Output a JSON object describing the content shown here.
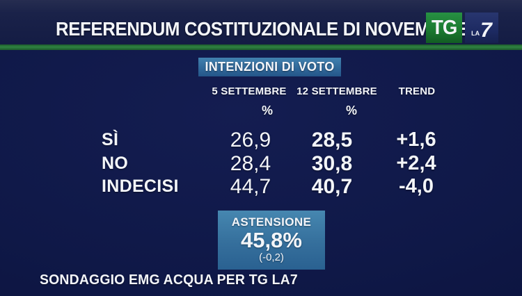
{
  "header": {
    "title": "REFERENDUM COSTITUZIONALE DI NOVEMBRE",
    "logo": {
      "tg": "TG",
      "la": "LA",
      "seven": "7"
    }
  },
  "section_label": "INTENZIONI DI VOTO",
  "table": {
    "columns": [
      "5 SETTEMBRE",
      "12 SETTEMBRE",
      "TREND"
    ],
    "unit": "%",
    "rows": [
      {
        "label": "SÌ",
        "sep5": "26,9",
        "sep12": "28,5",
        "trend": "+1,6"
      },
      {
        "label": "NO",
        "sep5": "28,4",
        "sep12": "30,8",
        "trend": "+2,4"
      },
      {
        "label": "INDECISI",
        "sep5": "44,7",
        "sep12": "40,7",
        "trend": "-4,0"
      }
    ]
  },
  "astensione": {
    "label": "ASTENSIONE",
    "value": "45,8%",
    "trend": "(-0,2)"
  },
  "footer": "SONDAGGIO EMG ACQUA PER TG LA7",
  "colors": {
    "background_navy": "#0f1847",
    "header_navy": "#1a2249",
    "stripe_green": "#2f8342",
    "tg_green": "#1b7b31",
    "la7_navy": "#1d2a62",
    "badge_blue_top": "#4181af",
    "badge_blue_bottom": "#24568a",
    "text_white": "#f3f5f9"
  },
  "chart_data": {
    "type": "table",
    "title": "REFERENDUM COSTITUZIONALE DI NOVEMBRE — INTENZIONI DI VOTO",
    "categories": [
      "SÌ",
      "NO",
      "INDECISI"
    ],
    "series": [
      {
        "name": "5 SETTEMBRE (%)",
        "values": [
          26.9,
          28.4,
          44.7
        ]
      },
      {
        "name": "12 SETTEMBRE (%)",
        "values": [
          28.5,
          30.8,
          40.7
        ]
      },
      {
        "name": "TREND",
        "values": [
          1.6,
          2.4,
          -4.0
        ]
      }
    ],
    "annotations": [
      {
        "label": "ASTENSIONE",
        "value_pct": 45.8,
        "trend": -0.2
      }
    ],
    "source": "SONDAGGIO EMG ACQUA PER TG LA7",
    "legend_position": "none",
    "grid": false
  }
}
